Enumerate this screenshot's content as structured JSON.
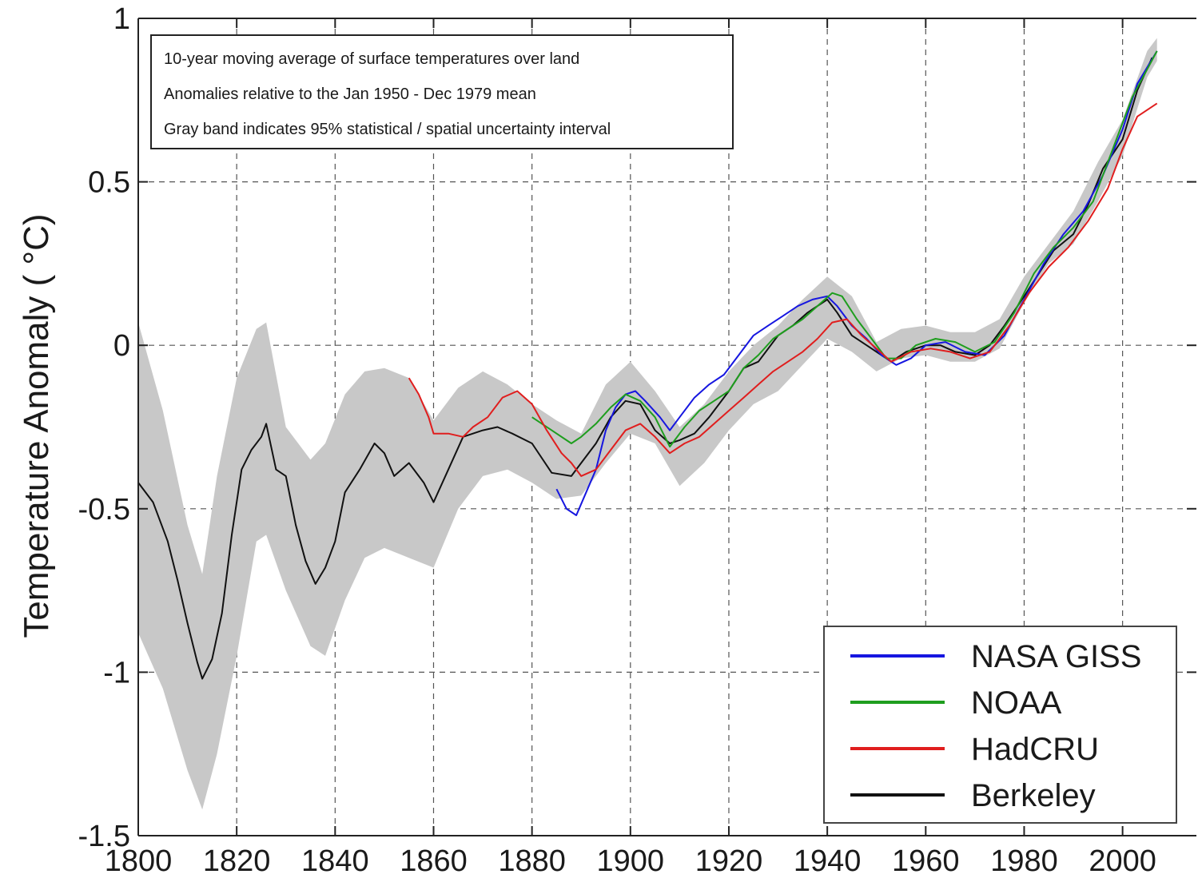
{
  "chart_data": {
    "type": "line",
    "title": "",
    "xlabel": "",
    "ylabel": "Temperature Anomaly ( °C)",
    "xlim": [
      1800,
      2015
    ],
    "ylim": [
      -1.5,
      1
    ],
    "x_ticks": [
      1800,
      1820,
      1840,
      1860,
      1880,
      1900,
      1920,
      1940,
      1960,
      1980,
      2000
    ],
    "y_ticks": [
      1,
      0.5,
      0,
      -0.5,
      -1,
      -1.5
    ],
    "x_tick_labels": [
      "1800",
      "1820",
      "1840",
      "1860",
      "1880",
      "1900",
      "1920",
      "1940",
      "1960",
      "1980",
      "2000"
    ],
    "y_tick_labels": [
      "1",
      "0.5",
      "0",
      "-0.5",
      "-1",
      "-1.5"
    ],
    "grid": true,
    "legend_position": "bottom-right",
    "annotations": [
      "10-year moving average of surface temperatures over land",
      "Anomalies relative to the Jan 1950 - Dec 1979 mean",
      "Gray band indicates 95% statistical / spatial uncertainty interval"
    ],
    "uncertainty_band": {
      "color": "#c8c8c8",
      "x": [
        1800,
        1805,
        1810,
        1813,
        1816,
        1820,
        1824,
        1826,
        1830,
        1835,
        1838,
        1842,
        1846,
        1850,
        1855,
        1860,
        1865,
        1870,
        1875,
        1880,
        1885,
        1890,
        1895,
        1900,
        1905,
        1910,
        1915,
        1920,
        1925,
        1930,
        1935,
        1940,
        1945,
        1950,
        1955,
        1960,
        1965,
        1970,
        1975,
        1980,
        1985,
        1990,
        1995,
        2000,
        2005,
        2007
      ],
      "lower": [
        -0.88,
        -1.05,
        -1.3,
        -1.42,
        -1.25,
        -0.95,
        -0.6,
        -0.58,
        -0.75,
        -0.92,
        -0.95,
        -0.78,
        -0.65,
        -0.62,
        -0.65,
        -0.68,
        -0.5,
        -0.4,
        -0.38,
        -0.42,
        -0.47,
        -0.46,
        -0.36,
        -0.27,
        -0.3,
        -0.43,
        -0.36,
        -0.26,
        -0.18,
        -0.14,
        -0.06,
        0.02,
        -0.02,
        -0.08,
        -0.04,
        -0.03,
        -0.05,
        -0.05,
        -0.01,
        0.13,
        0.25,
        0.31,
        0.44,
        0.58,
        0.82,
        0.87
      ],
      "upper": [
        0.07,
        -0.2,
        -0.55,
        -0.7,
        -0.4,
        -0.1,
        0.05,
        0.07,
        -0.25,
        -0.35,
        -0.3,
        -0.15,
        -0.08,
        -0.07,
        -0.1,
        -0.23,
        -0.13,
        -0.08,
        -0.12,
        -0.18,
        -0.23,
        -0.27,
        -0.12,
        -0.05,
        -0.14,
        -0.25,
        -0.18,
        -0.08,
        0.0,
        0.06,
        0.14,
        0.21,
        0.15,
        0.01,
        0.05,
        0.06,
        0.04,
        0.04,
        0.08,
        0.21,
        0.31,
        0.41,
        0.56,
        0.69,
        0.9,
        0.94
      ]
    },
    "series": [
      {
        "name": "Berkeley",
        "color": "#111111",
        "x": [
          1800,
          1803,
          1806,
          1808,
          1810,
          1812,
          1813,
          1815,
          1817,
          1819,
          1821,
          1823,
          1825,
          1826,
          1828,
          1830,
          1832,
          1834,
          1836,
          1838,
          1840,
          1842,
          1845,
          1848,
          1850,
          1852,
          1855,
          1858,
          1860,
          1863,
          1866,
          1870,
          1873,
          1876,
          1880,
          1884,
          1888,
          1890,
          1893,
          1896,
          1899,
          1902,
          1905,
          1908,
          1910,
          1913,
          1916,
          1920,
          1923,
          1926,
          1930,
          1933,
          1936,
          1940,
          1942,
          1945,
          1948,
          1951,
          1953,
          1956,
          1960,
          1963,
          1966,
          1970,
          1973,
          1976,
          1980,
          1983,
          1986,
          1990,
          1993,
          1996,
          2000,
          2003,
          2006
        ],
        "y": [
          -0.42,
          -0.48,
          -0.6,
          -0.72,
          -0.85,
          -0.97,
          -1.02,
          -0.96,
          -0.82,
          -0.58,
          -0.38,
          -0.32,
          -0.28,
          -0.24,
          -0.38,
          -0.4,
          -0.55,
          -0.66,
          -0.73,
          -0.68,
          -0.6,
          -0.45,
          -0.38,
          -0.3,
          -0.33,
          -0.4,
          -0.36,
          -0.42,
          -0.48,
          -0.38,
          -0.28,
          -0.26,
          -0.25,
          -0.27,
          -0.3,
          -0.39,
          -0.4,
          -0.36,
          -0.3,
          -0.22,
          -0.17,
          -0.18,
          -0.26,
          -0.3,
          -0.29,
          -0.27,
          -0.22,
          -0.14,
          -0.07,
          -0.05,
          0.03,
          0.06,
          0.1,
          0.14,
          0.1,
          0.03,
          0.0,
          -0.03,
          -0.05,
          -0.02,
          0.0,
          0.0,
          -0.02,
          -0.03,
          0.0,
          0.06,
          0.15,
          0.22,
          0.29,
          0.34,
          0.43,
          0.54,
          0.63,
          0.78,
          0.88
        ]
      },
      {
        "name": "NASA GISS",
        "color": "#1616e0",
        "x": [
          1885,
          1887,
          1889,
          1891,
          1893,
          1895,
          1897,
          1899,
          1901,
          1903,
          1906,
          1908,
          1910,
          1913,
          1916,
          1919,
          1922,
          1925,
          1928,
          1931,
          1934,
          1937,
          1940,
          1942,
          1945,
          1948,
          1951,
          1954,
          1957,
          1960,
          1964,
          1968,
          1972,
          1976,
          1980,
          1984,
          1988,
          1992,
          1996,
          2000,
          2003,
          2007
        ],
        "y": [
          -0.44,
          -0.5,
          -0.52,
          -0.45,
          -0.38,
          -0.26,
          -0.19,
          -0.15,
          -0.14,
          -0.17,
          -0.22,
          -0.26,
          -0.22,
          -0.16,
          -0.12,
          -0.09,
          -0.03,
          0.03,
          0.06,
          0.09,
          0.12,
          0.14,
          0.15,
          0.12,
          0.06,
          0.02,
          -0.03,
          -0.06,
          -0.04,
          0.0,
          0.01,
          -0.02,
          -0.03,
          0.03,
          0.14,
          0.25,
          0.34,
          0.41,
          0.52,
          0.66,
          0.8,
          0.9
        ]
      },
      {
        "name": "NOAA",
        "color": "#1e9e1e",
        "x": [
          1880,
          1884,
          1888,
          1890,
          1893,
          1896,
          1899,
          1902,
          1905,
          1908,
          1911,
          1914,
          1917,
          1920,
          1923,
          1926,
          1929,
          1932,
          1935,
          1938,
          1941,
          1943,
          1946,
          1949,
          1952,
          1955,
          1958,
          1962,
          1966,
          1970,
          1974,
          1978,
          1982,
          1986,
          1990,
          1994,
          1998,
          2002,
          2007
        ],
        "y": [
          -0.22,
          -0.26,
          -0.3,
          -0.28,
          -0.24,
          -0.19,
          -0.15,
          -0.17,
          -0.22,
          -0.31,
          -0.25,
          -0.2,
          -0.17,
          -0.14,
          -0.07,
          -0.03,
          0.02,
          0.05,
          0.08,
          0.12,
          0.16,
          0.15,
          0.08,
          0.02,
          -0.04,
          -0.04,
          0.0,
          0.02,
          0.01,
          -0.02,
          0.01,
          0.1,
          0.22,
          0.3,
          0.36,
          0.44,
          0.6,
          0.76,
          0.9
        ]
      },
      {
        "name": "HadCRU",
        "color": "#e01e1e",
        "x": [
          1855,
          1857,
          1859,
          1860,
          1863,
          1866,
          1868,
          1871,
          1874,
          1877,
          1880,
          1883,
          1886,
          1888,
          1890,
          1893,
          1896,
          1899,
          1902,
          1905,
          1908,
          1911,
          1914,
          1917,
          1920,
          1923,
          1926,
          1929,
          1932,
          1935,
          1938,
          1941,
          1944,
          1947,
          1950,
          1953,
          1957,
          1961,
          1965,
          1969,
          1973,
          1977,
          1981,
          1985,
          1989,
          1993,
          1997,
          2000,
          2003,
          2007
        ],
        "y": [
          -0.1,
          -0.15,
          -0.22,
          -0.27,
          -0.27,
          -0.28,
          -0.25,
          -0.22,
          -0.16,
          -0.14,
          -0.18,
          -0.26,
          -0.33,
          -0.36,
          -0.4,
          -0.38,
          -0.32,
          -0.26,
          -0.24,
          -0.28,
          -0.33,
          -0.3,
          -0.28,
          -0.24,
          -0.2,
          -0.16,
          -0.12,
          -0.08,
          -0.05,
          -0.02,
          0.02,
          0.07,
          0.08,
          0.03,
          -0.01,
          -0.05,
          -0.02,
          -0.01,
          -0.02,
          -0.04,
          -0.02,
          0.06,
          0.16,
          0.24,
          0.3,
          0.38,
          0.48,
          0.6,
          0.7,
          0.74
        ]
      }
    ]
  }
}
